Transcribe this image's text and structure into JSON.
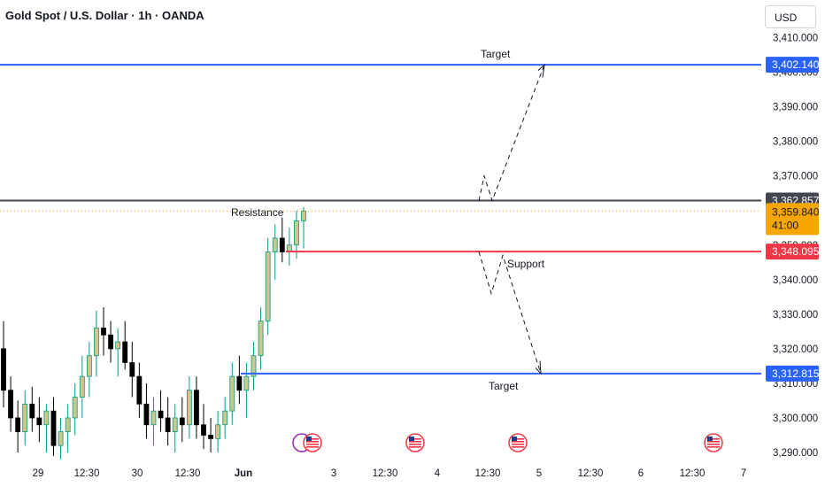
{
  "header": {
    "title": "Gold Spot / U.S. Dollar · 1h · OANDA",
    "currency_button": "USD"
  },
  "chart_data": {
    "type": "candlestick",
    "title": "Gold Spot / U.S. Dollar · 1h · OANDA",
    "y_axis": {
      "ticks": [
        "3,290.000",
        "3,300.000",
        "3,310.000",
        "3,320.000",
        "3,330.000",
        "3,340.000",
        "3,350.000",
        "3,360.000",
        "3,370.000",
        "3,380.000",
        "3,390.000",
        "3,400.000",
        "3,410.000"
      ],
      "range": [
        3288.5,
        3412.4
      ],
      "side": "right"
    },
    "x_axis": {
      "ticks": [
        "29",
        "12:30",
        "30",
        "12:30",
        "Jun",
        "3",
        "12:30",
        "4",
        "12:30",
        "5",
        "12:30",
        "6",
        "12:30",
        "7"
      ]
    },
    "up_color": "#089981",
    "down_color": "#000000",
    "body_color_up": "#c8c98a",
    "candles": [
      [
        3320,
        3328,
        3303,
        3308
      ],
      [
        3308,
        3312,
        3296,
        3300
      ],
      [
        3300,
        3305,
        3290,
        3296
      ],
      [
        3296,
        3308,
        3292,
        3304
      ],
      [
        3304,
        3309,
        3296,
        3300
      ],
      [
        3300,
        3306,
        3293,
        3298
      ],
      [
        3298,
        3304,
        3290,
        3302
      ],
      [
        3302,
        3306,
        3289,
        3292
      ],
      [
        3292,
        3300,
        3288,
        3296
      ],
      [
        3296,
        3304,
        3290,
        3300
      ],
      [
        3300,
        3310,
        3295,
        3306
      ],
      [
        3306,
        3318,
        3300,
        3312
      ],
      [
        3312,
        3322,
        3306,
        3318
      ],
      [
        3318,
        3331,
        3312,
        3326
      ],
      [
        3326,
        3332,
        3318,
        3324
      ],
      [
        3324,
        3328,
        3316,
        3320
      ],
      [
        3320,
        3326,
        3312,
        3322
      ],
      [
        3322,
        3328,
        3314,
        3316
      ],
      [
        3316,
        3322,
        3306,
        3312
      ],
      [
        3312,
        3316,
        3300,
        3304
      ],
      [
        3304,
        3310,
        3294,
        3298
      ],
      [
        3298,
        3306,
        3292,
        3302
      ],
      [
        3302,
        3308,
        3296,
        3300
      ],
      [
        3300,
        3306,
        3292,
        3296
      ],
      [
        3296,
        3304,
        3290,
        3300
      ],
      [
        3300,
        3306,
        3293,
        3298
      ],
      [
        3298,
        3312,
        3294,
        3308
      ],
      [
        3308,
        3312,
        3294,
        3298
      ],
      [
        3298,
        3304,
        3291,
        3295
      ],
      [
        3295,
        3300,
        3290,
        3294
      ],
      [
        3294,
        3302,
        3290,
        3298
      ],
      [
        3298,
        3306,
        3294,
        3302
      ],
      [
        3302,
        3316,
        3298,
        3312
      ],
      [
        3312,
        3318,
        3304,
        3308
      ],
      [
        3308,
        3316,
        3300,
        3312
      ],
      [
        3312,
        3322,
        3308,
        3318
      ],
      [
        3318,
        3332,
        3314,
        3328
      ],
      [
        3328,
        3352,
        3324,
        3348
      ],
      [
        3348,
        3356,
        3340,
        3352
      ],
      [
        3352,
        3358,
        3345,
        3348
      ],
      [
        3348,
        3355,
        3344,
        3350
      ],
      [
        3350,
        3360,
        3346,
        3357
      ],
      [
        3357,
        3361,
        3349,
        3359.84
      ]
    ],
    "levels": [
      {
        "name": "Target",
        "value": "3,402.140",
        "price": 3402.14,
        "color": "#2962ff"
      },
      {
        "name": "Resistance",
        "value": "3,362.857",
        "price": 3362.857,
        "color": "#434651"
      },
      {
        "name": "Current price",
        "value": "3,359.840",
        "price": 3359.84,
        "color": "#f7a600",
        "countdown": "41:00"
      },
      {
        "name": "Support",
        "value": "3,348.095",
        "price": 3348.095,
        "color": "#f23645"
      },
      {
        "name": "Target",
        "value": "3,312.815",
        "price": 3312.815,
        "color": "#2962ff"
      }
    ],
    "annotations": {
      "resistance_label": "Resistance",
      "support_label": "Support",
      "target_top_label": "Target",
      "target_bottom_label": "Target"
    },
    "projection_up": [
      [
        3362.857,
        "4 12:30"
      ],
      [
        3370,
        ""
      ],
      [
        3362.857,
        ""
      ],
      [
        3402.14,
        "5"
      ]
    ],
    "projection_down": [
      [
        3348.095,
        "4 12:30"
      ],
      [
        3336,
        ""
      ],
      [
        3347,
        ""
      ],
      [
        3312.815,
        "5"
      ]
    ],
    "event_icons": 5
  }
}
